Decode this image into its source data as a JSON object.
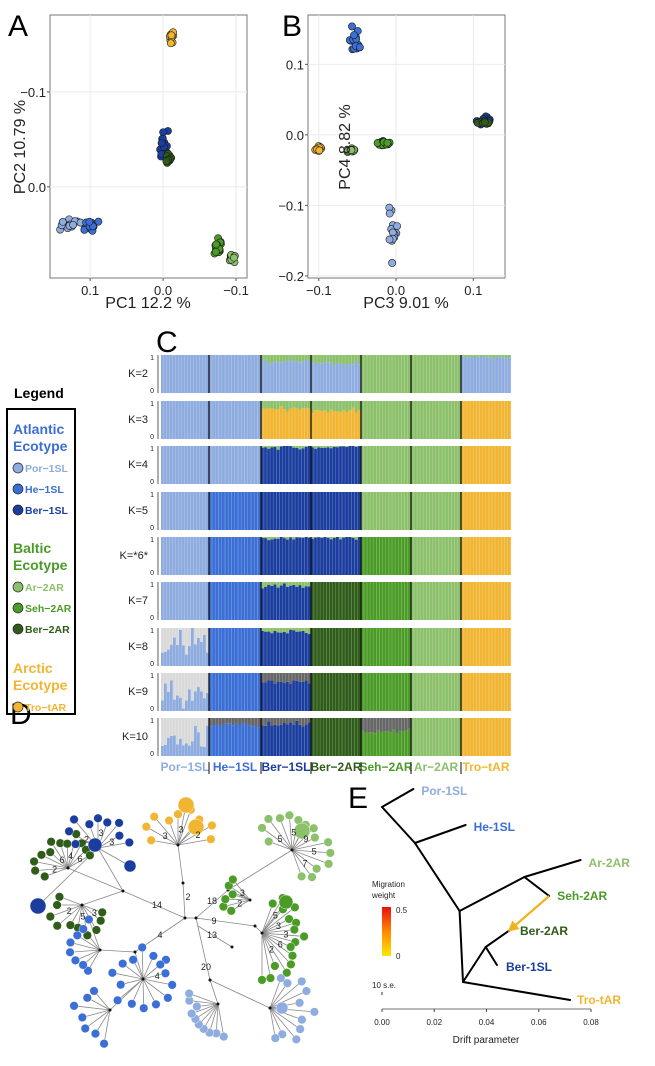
{
  "panel_labels": {
    "a": "A",
    "b": "B",
    "c": "C",
    "d": "D",
    "e": "E"
  },
  "colors": {
    "por": "#8eacdf",
    "he": "#3b6fd6",
    "ber1": "#1a3d9e",
    "ar": "#8cc06a",
    "seh": "#4b9b27",
    "ber2": "#2f5c19",
    "tro": "#f1b531",
    "lightgrey": "#d9d9d9",
    "darkgrey": "#666666",
    "k_highlight": "#e0201b",
    "arrow": "#f2b21c"
  },
  "legend": {
    "title": "Legend",
    "groups": [
      {
        "title_1": "Atlantic",
        "title_2": "Ecotype",
        "color": "#3b6fd6",
        "items": [
          {
            "label": "Por−1SL",
            "color": "#8eacdf"
          },
          {
            "label": "He−1SL",
            "color": "#3b6fd6"
          },
          {
            "label": "Ber−1SL",
            "color": "#1a3d9e"
          }
        ]
      },
      {
        "title_1": "Baltic",
        "title_2": "Ecotype",
        "color": "#4b9b27",
        "items": [
          {
            "label": "Ar−2AR",
            "color": "#8cc06a"
          },
          {
            "label": "Seh−2AR",
            "color": "#4b9b27"
          },
          {
            "label": "Ber−2AR",
            "color": "#2f5c19"
          }
        ]
      },
      {
        "title_1": "Arctic",
        "title_2": "Ecotype",
        "color": "#f1b531",
        "items": [
          {
            "label": "Tro−tAR",
            "color": "#f1b531"
          }
        ]
      }
    ]
  },
  "chart_data": [
    {
      "panel": "A",
      "type": "scatter",
      "xlabel": "PC1  12.2 %",
      "ylabel": "PC2  10.79 %",
      "xlim": [
        -0.115,
        0.155
      ],
      "x_reversed": true,
      "ylim": [
        -0.181,
        0.096
      ],
      "y_reversed": true,
      "xticks": [
        0.1,
        0.0,
        -0.1
      ],
      "xtick_labels": [
        "0.1",
        "0.0",
        "−0.1"
      ],
      "yticks": [
        -0.1,
        0.0
      ],
      "ytick_labels": [
        "−0.1",
        "0.0"
      ],
      "grid": true,
      "clusters": [
        {
          "population": "Por-1SL",
          "color": "por",
          "x": 0.128,
          "y": 0.039,
          "sx": 0.013,
          "sy": 0.005,
          "n": 16
        },
        {
          "population": "He-1SL",
          "color": "he",
          "x": 0.098,
          "y": 0.041,
          "sx": 0.006,
          "sy": 0.005,
          "n": 16
        },
        {
          "population": "Ber-1SL",
          "color": "ber1",
          "x": 0.0,
          "y": -0.045,
          "sx": 0.004,
          "sy": 0.008,
          "n": 16
        },
        {
          "population": "Ber-2AR",
          "color": "ber2",
          "x": -0.008,
          "y": -0.03,
          "sx": 0.003,
          "sy": 0.005,
          "n": 14
        },
        {
          "population": "Seh-2AR",
          "color": "seh",
          "x": -0.075,
          "y": 0.064,
          "sx": 0.004,
          "sy": 0.006,
          "n": 14
        },
        {
          "population": "Ar-2AR",
          "color": "ar",
          "x": -0.095,
          "y": 0.075,
          "sx": 0.003,
          "sy": 0.004,
          "n": 12
        },
        {
          "population": "Tro-tAR",
          "color": "tro",
          "x": -0.012,
          "y": -0.158,
          "sx": 0.002,
          "sy": 0.008,
          "n": 12
        }
      ]
    },
    {
      "panel": "B",
      "type": "scatter",
      "xlabel": "PC3  9.01 %",
      "ylabel": "PC4  8.82 %",
      "xlim": [
        -0.114,
        0.141
      ],
      "ylim": [
        -0.203,
        0.17
      ],
      "xticks": [
        -0.1,
        0.0,
        0.1
      ],
      "xtick_labels": [
        "−0.1",
        "0.0",
        "0.1"
      ],
      "yticks": [
        -0.2,
        -0.1,
        0.0,
        0.1
      ],
      "ytick_labels": [
        "−0.2",
        "−0.1",
        "0.0",
        "0.1"
      ],
      "grid": true,
      "clusters": [
        {
          "population": "Tro-tAR",
          "color": "tro",
          "x": -0.1,
          "y": -0.02,
          "sx": 0.003,
          "sy": 0.003,
          "n": 14
        },
        {
          "population": "Ar-2AR",
          "color": "ar",
          "x": -0.058,
          "y": -0.022,
          "sx": 0.004,
          "sy": 0.002,
          "n": 12
        },
        {
          "population": "Seh-2AR",
          "color": "seh",
          "x": -0.015,
          "y": -0.012,
          "sx": 0.006,
          "sy": 0.003,
          "n": 16
        },
        {
          "population": "He-1SL",
          "color": "he",
          "x": -0.053,
          "y": 0.135,
          "sx": 0.004,
          "sy": 0.012,
          "n": 16
        },
        {
          "population": "Por-1SL",
          "color": "por",
          "x": -0.004,
          "y": -0.14,
          "sx": 0.004,
          "sy": 0.03,
          "n": 14
        },
        {
          "population": "Ber-1SL",
          "color": "ber1",
          "x": 0.113,
          "y": 0.021,
          "sx": 0.008,
          "sy": 0.004,
          "n": 18
        },
        {
          "population": "Ber-2AR",
          "color": "ber2",
          "x": 0.112,
          "y": 0.017,
          "sx": 0.006,
          "sy": 0.002,
          "n": 12
        }
      ]
    },
    {
      "panel": "C",
      "type": "bar",
      "subtype": "stacked admixture proportions",
      "yticks": [
        "1",
        "0"
      ],
      "populations": [
        "Por−1SL",
        "He−1SL",
        "Ber−1SL",
        "Ber−2AR",
        "Seh−2AR",
        "Ar−2AR",
        "Tro−tAR"
      ],
      "population_colors": [
        "por",
        "he",
        "ber1",
        "ber2",
        "seh",
        "ar",
        "tro"
      ],
      "rows": [
        {
          "k": "K=2",
          "highlight": false,
          "pops": [
            [
              [
                "por",
                1
              ]
            ],
            [
              [
                "por",
                1
              ]
            ],
            [
              [
                "por",
                0.83
              ],
              [
                "ar",
                0.17
              ]
            ],
            [
              [
                "por",
                0.78
              ],
              [
                "ar",
                0.22
              ]
            ],
            [
              [
                "ar",
                1
              ]
            ],
            [
              [
                "ar",
                1
              ]
            ],
            [
              [
                "por",
                0.95
              ],
              [
                "ar",
                0.05
              ]
            ]
          ]
        },
        {
          "k": "K=3",
          "highlight": false,
          "pops": [
            [
              [
                "por",
                1
              ]
            ],
            [
              [
                "por",
                1
              ]
            ],
            [
              [
                "tro",
                0.78
              ],
              [
                "ar",
                0.22
              ]
            ],
            [
              [
                "tro",
                0.76
              ],
              [
                "ar",
                0.24
              ]
            ],
            [
              [
                "ar",
                1
              ]
            ],
            [
              [
                "ar",
                1
              ]
            ],
            [
              [
                "tro",
                1
              ]
            ]
          ]
        },
        {
          "k": "K=4",
          "highlight": false,
          "pops": [
            [
              [
                "por",
                1
              ]
            ],
            [
              [
                "por",
                1
              ]
            ],
            [
              [
                "ber1",
                0.97
              ],
              [
                "ar",
                0.03
              ]
            ],
            [
              [
                "ber1",
                0.97
              ],
              [
                "ar",
                0.03
              ]
            ],
            [
              [
                "ar",
                1
              ]
            ],
            [
              [
                "ar",
                1
              ]
            ],
            [
              [
                "tro",
                1
              ]
            ]
          ]
        },
        {
          "k": "K=5",
          "highlight": false,
          "pops": [
            [
              [
                "por",
                1
              ]
            ],
            [
              [
                "he",
                1
              ]
            ],
            [
              [
                "ber1",
                1
              ]
            ],
            [
              [
                "ber1",
                1
              ]
            ],
            [
              [
                "ar",
                1
              ]
            ],
            [
              [
                "ar",
                1
              ]
            ],
            [
              [
                "tro",
                1
              ]
            ]
          ]
        },
        {
          "k": "K=*6*",
          "highlight": true,
          "pops": [
            [
              [
                "por",
                1
              ]
            ],
            [
              [
                "he",
                1
              ]
            ],
            [
              [
                "ber1",
                0.97
              ],
              [
                "ar",
                0.03
              ]
            ],
            [
              [
                "ber1",
                0.97
              ],
              [
                "ar",
                0.03
              ]
            ],
            [
              [
                "seh",
                1
              ]
            ],
            [
              [
                "ar",
                1
              ]
            ],
            [
              [
                "tro",
                1
              ]
            ]
          ]
        },
        {
          "k": "K=7",
          "highlight": false,
          "pops": [
            [
              [
                "por",
                1
              ]
            ],
            [
              [
                "he",
                1
              ]
            ],
            [
              [
                "ber1",
                0.88
              ],
              [
                "ar",
                0.12
              ]
            ],
            [
              [
                "ber2",
                1
              ]
            ],
            [
              [
                "seh",
                1
              ]
            ],
            [
              [
                "ar",
                1
              ]
            ],
            [
              [
                "tro",
                1
              ]
            ]
          ]
        },
        {
          "k": "K=8",
          "highlight": false,
          "pops": [
            [
              [
                "por",
                0.55
              ],
              [
                "lightgrey",
                0.45
              ]
            ],
            [
              [
                "he",
                1
              ]
            ],
            [
              [
                "ber1",
                0.9
              ],
              [
                "ar",
                0.1
              ]
            ],
            [
              [
                "ber2",
                1
              ]
            ],
            [
              [
                "seh",
                1
              ]
            ],
            [
              [
                "ar",
                1
              ]
            ],
            [
              [
                "tro",
                1
              ]
            ]
          ]
        },
        {
          "k": "K=9",
          "highlight": false,
          "pops": [
            [
              [
                "por",
                0.45
              ],
              [
                "lightgrey",
                0.55
              ]
            ],
            [
              [
                "he",
                1
              ]
            ],
            [
              [
                "ber1",
                0.75
              ],
              [
                "darkgrey",
                0.25
              ]
            ],
            [
              [
                "ber2",
                1
              ]
            ],
            [
              [
                "seh",
                1
              ]
            ],
            [
              [
                "ar",
                1
              ]
            ],
            [
              [
                "tro",
                1
              ]
            ]
          ]
        },
        {
          "k": "K=10",
          "highlight": false,
          "pops": [
            [
              [
                "por",
                0.45
              ],
              [
                "lightgrey",
                0.55
              ]
            ],
            [
              [
                "he",
                0.82
              ],
              [
                "darkgrey",
                0.18
              ]
            ],
            [
              [
                "ber1",
                0.85
              ],
              [
                "darkgrey",
                0.15
              ]
            ],
            [
              [
                "ber2",
                1
              ]
            ],
            [
              [
                "seh",
                0.65
              ],
              [
                "darkgrey",
                0.35
              ]
            ],
            [
              [
                "ar",
                1
              ]
            ],
            [
              [
                "tro",
                1
              ]
            ]
          ]
        }
      ]
    },
    {
      "panel": "D",
      "type": "network",
      "branch_labels": [
        "14",
        "2",
        "18",
        "9",
        "13",
        "4",
        "20",
        "3",
        "3",
        "2",
        "5",
        "5",
        "9",
        "5",
        "7",
        "5",
        "3",
        "3",
        "6",
        "2",
        "2",
        "3",
        "2",
        "6",
        "4",
        "6",
        "3",
        "5",
        "2",
        "2",
        "3",
        "3",
        "4"
      ]
    },
    {
      "panel": "E",
      "type": "line",
      "subtype": "treemix tree",
      "xlabel": "Drift parameter",
      "xlim": [
        0.0,
        0.08
      ],
      "xticks": [
        0.0,
        0.02,
        0.04,
        0.06,
        0.08
      ],
      "xtick_labels": [
        "0.00",
        "0.02",
        "0.04",
        "0.06",
        "0.08"
      ],
      "tips": [
        {
          "label": "Por-1SL",
          "color": "por",
          "drift": 0.012
        },
        {
          "label": "He-1SL",
          "color": "he",
          "drift": 0.032
        },
        {
          "label": "Ar-2AR",
          "color": "ar",
          "drift": 0.076
        },
        {
          "label": "Seh-2AR",
          "color": "seh",
          "drift": 0.064
        },
        {
          "label": "Ber-2AR",
          "color": "ber2",
          "drift": 0.049
        },
        {
          "label": "Ber-1SL",
          "color": "ber1",
          "drift": 0.044
        },
        {
          "label": "Tro-tAR",
          "color": "tro",
          "drift": 0.072
        }
      ],
      "migration_edges": [
        {
          "from": "Seh-2AR",
          "to": "Ber-2AR",
          "weight": 0.05
        }
      ],
      "migration_legend": {
        "title_1": "Migration",
        "title_2": "weight",
        "max_label": "0.5",
        "min_label": "0"
      },
      "scale_label": "10 s.e."
    }
  ]
}
